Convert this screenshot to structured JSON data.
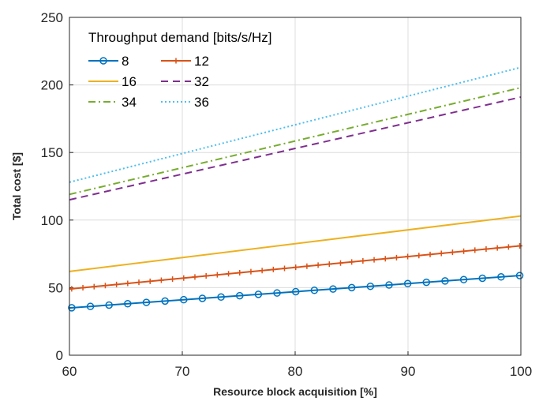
{
  "chart_data": {
    "type": "line",
    "title": "",
    "xlabel": "Resource block acquisition [%]",
    "ylabel": "Total cost [$]",
    "xlim": [
      60,
      100
    ],
    "ylim": [
      0,
      250
    ],
    "xticks": [
      "60",
      "70",
      "80",
      "90",
      "100"
    ],
    "yticks": [
      "0",
      "50",
      "100",
      "150",
      "200",
      "250"
    ],
    "grid": true,
    "legend": {
      "title": "Throughput demand [bits/s/Hz]",
      "placement": "top-left",
      "columns": 2
    },
    "series": [
      {
        "name": "8",
        "color": "#0072BD",
        "style": "solid",
        "marker": "circle",
        "x": [
          60,
          100
        ],
        "y": [
          35,
          59
        ]
      },
      {
        "name": "12",
        "color": "#D95319",
        "style": "solid",
        "marker": "plus",
        "x": [
          60,
          100
        ],
        "y": [
          49,
          81
        ]
      },
      {
        "name": "16",
        "color": "#EDB120",
        "style": "solid",
        "marker": "none",
        "x": [
          60,
          100
        ],
        "y": [
          62,
          103
        ]
      },
      {
        "name": "32",
        "color": "#7E2F8E",
        "style": "dashed",
        "marker": "none",
        "x": [
          60,
          100
        ],
        "y": [
          115,
          191
        ]
      },
      {
        "name": "34",
        "color": "#77AC30",
        "style": "dashdot",
        "marker": "none",
        "x": [
          60,
          100
        ],
        "y": [
          119,
          198
        ]
      },
      {
        "name": "36",
        "color": "#4DBEEE",
        "style": "dotted",
        "marker": "none",
        "x": [
          60,
          100
        ],
        "y": [
          128,
          213
        ]
      }
    ]
  }
}
